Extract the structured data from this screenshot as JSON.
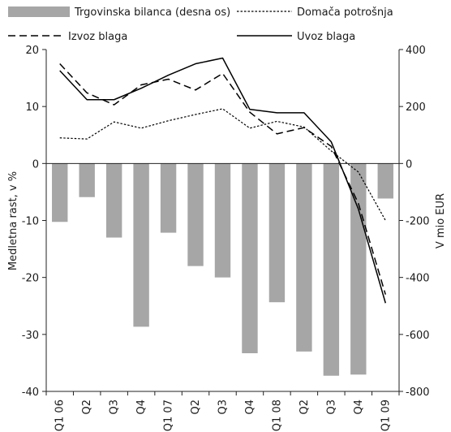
{
  "chart_data": {
    "type": "bar",
    "categories": [
      "Q1 06",
      "Q2",
      "Q3",
      "Q4",
      "Q1 07",
      "Q2",
      "Q3",
      "Q4",
      "Q1 08",
      "Q2",
      "Q3",
      "Q4",
      "Q1 09"
    ],
    "series": [
      {
        "name": "Trgovinska bilanca (desna os)",
        "type": "bar",
        "axis": "right",
        "color": "#a6a6a6",
        "values": [
          -205,
          -118,
          -260,
          -573,
          -243,
          -360,
          -400,
          -666,
          -487,
          -660,
          -745,
          -741,
          -123
        ]
      },
      {
        "name": "Domača potrošnja",
        "type": "line",
        "axis": "left",
        "style": "dotted",
        "values": [
          4.5,
          4.3,
          7.3,
          6.2,
          7.5,
          8.6,
          9.6,
          6.2,
          7.4,
          6.4,
          2.2,
          -1.5,
          -10.0
        ]
      },
      {
        "name": "Izvoz blaga",
        "type": "line",
        "axis": "left",
        "style": "dashed",
        "values": [
          17.5,
          12.4,
          10.3,
          13.8,
          14.8,
          12.9,
          15.8,
          9.0,
          5.2,
          6.3,
          3.0,
          -7.0,
          -23.0
        ]
      },
      {
        "name": "Uvoz blaga",
        "type": "line",
        "axis": "left",
        "style": "solid",
        "values": [
          16.3,
          11.2,
          11.2,
          13.2,
          15.5,
          17.5,
          18.5,
          9.5,
          8.9,
          8.9,
          3.8,
          -8.0,
          -24.5
        ]
      }
    ],
    "ylabel": "Medletna rast, v %",
    "ylabel_right": "V mio EUR",
    "ylim": [
      -40,
      20
    ],
    "yticks": [
      20,
      10,
      0,
      -10,
      -20,
      -30,
      -40
    ],
    "ylim_right": [
      -800,
      400
    ],
    "yticks_right": [
      400,
      200,
      0,
      -200,
      -400,
      -600,
      -800
    ],
    "grid": false,
    "legend_position": "top"
  }
}
